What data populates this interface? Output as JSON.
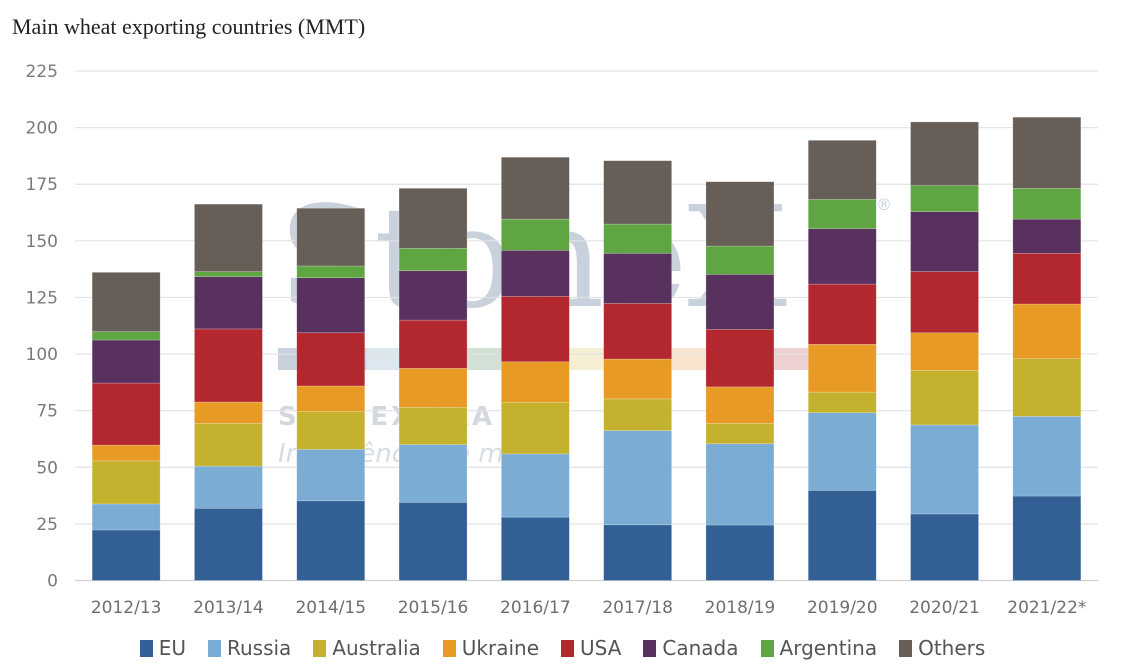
{
  "title": "Main wheat exporting countries (MMT)",
  "watermark": {
    "logo": "StoneX",
    "registered": "®",
    "line1": "STONEX BRA",
    "line2": "Inteligência de merca",
    "band_colors": [
      "#c9d2dc",
      "#dde7f0",
      "#d2e0d6",
      "#f6efd4",
      "#f9e5cf",
      "#ecd0d2"
    ]
  },
  "chart_data": {
    "type": "bar",
    "stacked": true,
    "title": "Main wheat exporting countries (MMT)",
    "xlabel": "",
    "ylabel": "",
    "ylim": [
      0,
      225
    ],
    "yticks": [
      0,
      25,
      50,
      75,
      100,
      125,
      150,
      175,
      200,
      225
    ],
    "grid": true,
    "legend_position": "bottom",
    "categories": [
      "2012/13",
      "2013/14",
      "2014/15",
      "2015/16",
      "2016/17",
      "2017/18",
      "2018/19",
      "2019/20",
      "2020/21",
      "2021/22*"
    ],
    "series": [
      {
        "name": "EU",
        "color": "#326094",
        "values": [
          22.3,
          31.9,
          35.2,
          34.5,
          28.0,
          24.6,
          24.5,
          39.8,
          29.4,
          37.3
        ]
      },
      {
        "name": "Russia",
        "color": "#7aacd4",
        "values": [
          11.5,
          18.6,
          22.7,
          25.5,
          27.9,
          41.6,
          35.9,
          34.3,
          39.3,
          35.2
        ]
      },
      {
        "name": "Australia",
        "color": "#c4b22f",
        "values": [
          19.0,
          18.9,
          16.7,
          16.5,
          22.8,
          14.0,
          9.0,
          9.1,
          24.1,
          25.5
        ]
      },
      {
        "name": "Ukraine",
        "color": "#e89b24",
        "values": [
          7.0,
          9.4,
          11.3,
          17.2,
          17.9,
          17.6,
          16.1,
          21.1,
          16.6,
          24.1
        ]
      },
      {
        "name": "USA",
        "color": "#b3282e",
        "values": [
          27.4,
          32.3,
          23.5,
          21.3,
          28.9,
          24.6,
          25.4,
          26.6,
          27.0,
          22.4
        ]
      },
      {
        "name": "Canada",
        "color": "#59315f",
        "values": [
          19.0,
          23.1,
          24.3,
          21.8,
          20.3,
          22.1,
          24.3,
          24.5,
          26.5,
          15.1
        ]
      },
      {
        "name": "Argentina",
        "color": "#5fa643",
        "values": [
          3.7,
          2.2,
          5.2,
          9.9,
          13.8,
          12.9,
          12.5,
          12.9,
          11.5,
          13.6
        ]
      },
      {
        "name": "Others",
        "color": "#675e57",
        "values": [
          26.2,
          29.8,
          25.5,
          26.5,
          27.3,
          28.0,
          28.4,
          26.1,
          28.1,
          31.4
        ]
      }
    ]
  }
}
